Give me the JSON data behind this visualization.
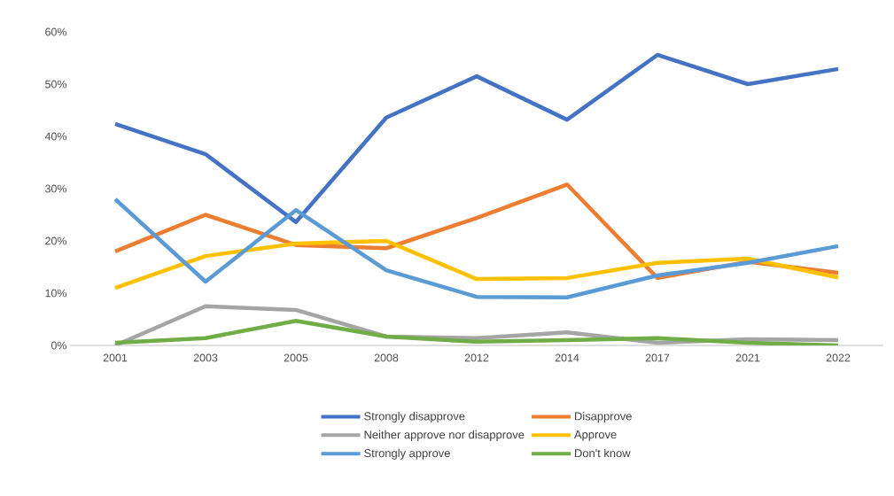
{
  "chart_data": {
    "type": "line",
    "categories": [
      "2001",
      "2003",
      "2005",
      "2008",
      "2012",
      "2014",
      "2017",
      "2021",
      "2022"
    ],
    "series": [
      {
        "name": "Strongly disapprove",
        "color": "#4472c4",
        "values": [
          42.4,
          36.6,
          23.6,
          43.6,
          51.5,
          43.2,
          55.6,
          50,
          52.9
        ]
      },
      {
        "name": "Disapprove",
        "color": "#ed7d31",
        "values": [
          18,
          25,
          19.2,
          18.6,
          24.4,
          30.8,
          12.9,
          16,
          13.9
        ]
      },
      {
        "name": "Neither approve nor disapprove",
        "color": "#a5a5a5",
        "values": [
          0,
          7.5,
          6.8,
          1.7,
          1.4,
          2.5,
          0.5,
          1.2,
          1
        ]
      },
      {
        "name": "Approve",
        "color": "#ffc000",
        "values": [
          11,
          17.1,
          19.5,
          20,
          12.7,
          12.9,
          15.8,
          16.6,
          13
        ]
      },
      {
        "name": "Strongly approve",
        "color": "#5b9bd5",
        "values": [
          28,
          12.2,
          25.9,
          14.4,
          9.3,
          9.2,
          13.4,
          15.8,
          19
        ]
      },
      {
        "name": "Don't know",
        "color": "#70ad47",
        "values": [
          0.5,
          1.4,
          4.7,
          1.7,
          0.7,
          1,
          1.4,
          0.5,
          0
        ]
      }
    ],
    "ylim": [
      0,
      60
    ],
    "yticks": [
      {
        "value": 0,
        "label": "0%"
      },
      {
        "value": 10,
        "label": "10%"
      },
      {
        "value": 20,
        "label": "20%"
      },
      {
        "value": 30,
        "label": "30%"
      },
      {
        "value": 40,
        "label": "40%"
      },
      {
        "value": 50,
        "label": "50%"
      },
      {
        "value": 60,
        "label": "60%"
      }
    ],
    "grid": false,
    "legend": "bottom",
    "marker": "none",
    "line_style": "solid"
  }
}
